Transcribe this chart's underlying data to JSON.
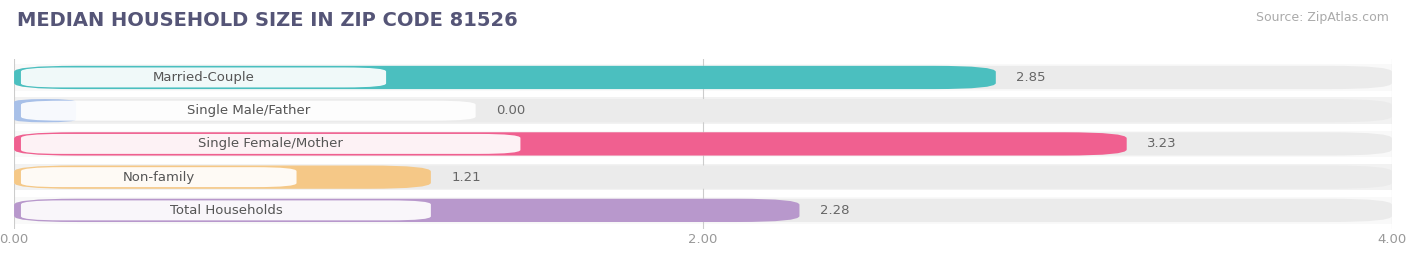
{
  "title": "MEDIAN HOUSEHOLD SIZE IN ZIP CODE 81526",
  "source": "Source: ZipAtlas.com",
  "categories": [
    "Married-Couple",
    "Single Male/Father",
    "Single Female/Mother",
    "Non-family",
    "Total Households"
  ],
  "values": [
    2.85,
    0.0,
    3.23,
    1.21,
    2.28
  ],
  "bar_colors": [
    "#4bbfbf",
    "#a8c0e8",
    "#f06090",
    "#f5c887",
    "#b898cc"
  ],
  "xlim": [
    0,
    4.0
  ],
  "xticks": [
    0.0,
    2.0,
    4.0
  ],
  "xtick_labels": [
    "0.00",
    "2.00",
    "4.00"
  ],
  "background_color": "#ffffff",
  "bar_bg_color": "#ebebeb",
  "row_bg_color": "#f7f7f7",
  "title_fontsize": 14,
  "label_fontsize": 9.5,
  "value_fontsize": 9.5,
  "source_fontsize": 9
}
